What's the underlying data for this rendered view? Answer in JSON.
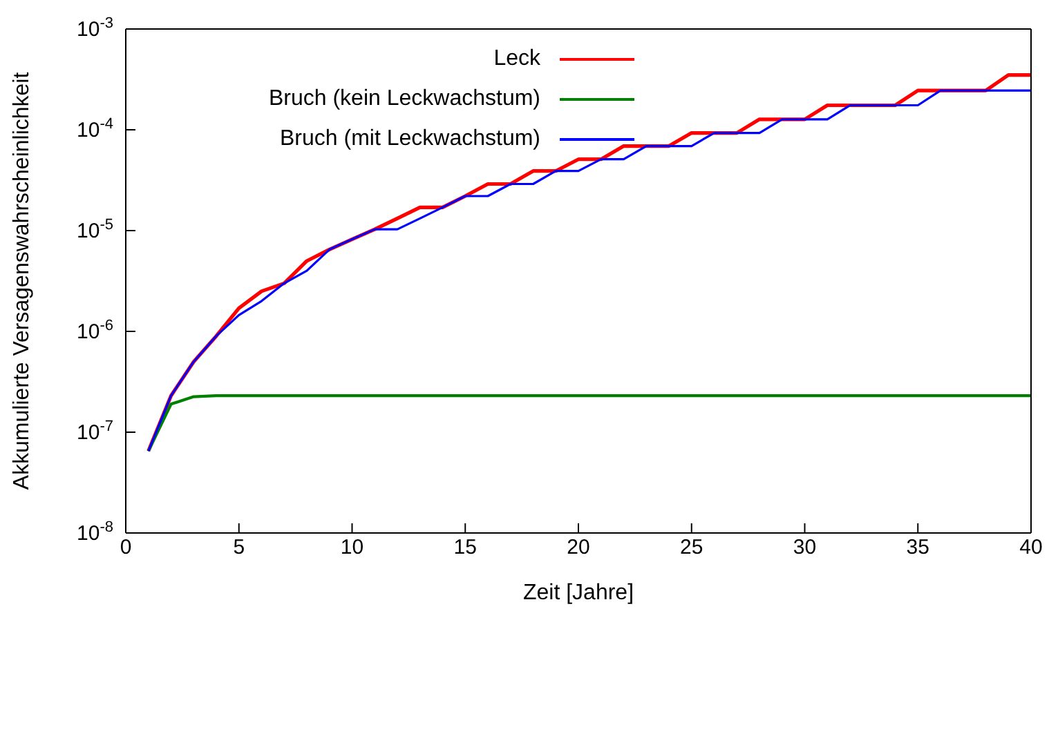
{
  "chart_data": {
    "type": "line",
    "xlabel": "Zeit [Jahre]",
    "ylabel": "Akkumulierte Versagenswahrscheinlichkeit",
    "x": [
      1,
      2,
      3,
      4,
      5,
      6,
      7,
      8,
      9,
      10,
      11,
      12,
      13,
      14,
      15,
      16,
      17,
      18,
      19,
      20,
      21,
      22,
      23,
      24,
      25,
      26,
      27,
      28,
      29,
      30,
      31,
      32,
      33,
      34,
      35,
      36,
      37,
      38,
      39,
      40
    ],
    "series": [
      {
        "name": "Leck",
        "color": "#ff0000",
        "values": [
          6.5e-08,
          2.3e-07,
          5e-07,
          9e-07,
          1.7e-06,
          2.5e-06,
          3e-06,
          5e-06,
          6.5e-06,
          8.2e-06,
          1.03e-05,
          1.32e-05,
          1.7e-05,
          1.7e-05,
          2.2e-05,
          2.9e-05,
          2.9e-05,
          3.9e-05,
          3.9e-05,
          5.1e-05,
          5.1e-05,
          6.9e-05,
          6.9e-05,
          6.9e-05,
          9.3e-05,
          9.3e-05,
          9.3e-05,
          0.000127,
          0.000127,
          0.000127,
          0.000175,
          0.000175,
          0.000175,
          0.000175,
          0.000245,
          0.000245,
          0.000245,
          0.000245,
          0.00035,
          0.00035
        ]
      },
      {
        "name": "Bruch (kein Leckwachstum)",
        "color": "#008000",
        "values": [
          6.5e-08,
          1.9e-07,
          2.25e-07,
          2.3e-07,
          2.3e-07,
          2.3e-07,
          2.3e-07,
          2.3e-07,
          2.3e-07,
          2.3e-07,
          2.3e-07,
          2.3e-07,
          2.3e-07,
          2.3e-07,
          2.3e-07,
          2.3e-07,
          2.3e-07,
          2.3e-07,
          2.3e-07,
          2.3e-07,
          2.3e-07,
          2.3e-07,
          2.3e-07,
          2.3e-07,
          2.3e-07,
          2.3e-07,
          2.3e-07,
          2.3e-07,
          2.3e-07,
          2.3e-07,
          2.3e-07,
          2.3e-07,
          2.3e-07,
          2.3e-07,
          2.3e-07,
          2.3e-07,
          2.3e-07,
          2.3e-07,
          2.3e-07,
          2.3e-07
        ]
      },
      {
        "name": "Bruch (mit Leckwachstum)",
        "color": "#0000ff",
        "values": [
          6.5e-08,
          2.3e-07,
          5e-07,
          9e-07,
          1.45e-06,
          2e-06,
          3e-06,
          4e-06,
          6.5e-06,
          8.2e-06,
          1.03e-05,
          1.03e-05,
          1.32e-05,
          1.7e-05,
          2.2e-05,
          2.2e-05,
          2.9e-05,
          2.9e-05,
          3.9e-05,
          3.9e-05,
          5.1e-05,
          5.1e-05,
          6.9e-05,
          6.9e-05,
          6.9e-05,
          9.3e-05,
          9.3e-05,
          9.3e-05,
          0.000127,
          0.000127,
          0.000127,
          0.000175,
          0.000175,
          0.000175,
          0.000175,
          0.000245,
          0.000245,
          0.000245,
          0.000245,
          0.000245
        ]
      }
    ],
    "xlim": [
      0,
      40
    ],
    "xticks": [
      0,
      5,
      10,
      15,
      20,
      25,
      30,
      35,
      40
    ],
    "ylim": [
      1e-08,
      0.001
    ],
    "yticks": [
      {
        "value": 1e-08,
        "label": "10$^{-8}$"
      },
      {
        "value": 1e-07,
        "label": "10$^{-7}$"
      },
      {
        "value": 1e-06,
        "label": "10$^{-6}$"
      },
      {
        "value": 1e-05,
        "label": "10$^{-5}$"
      },
      {
        "value": 0.0001,
        "label": "10$^{-4}$"
      },
      {
        "value": 0.001,
        "label": "10$^{-3}$"
      }
    ],
    "log": "y",
    "grid": false,
    "legend": "top",
    "marker": "none",
    "line_style": "solid"
  }
}
